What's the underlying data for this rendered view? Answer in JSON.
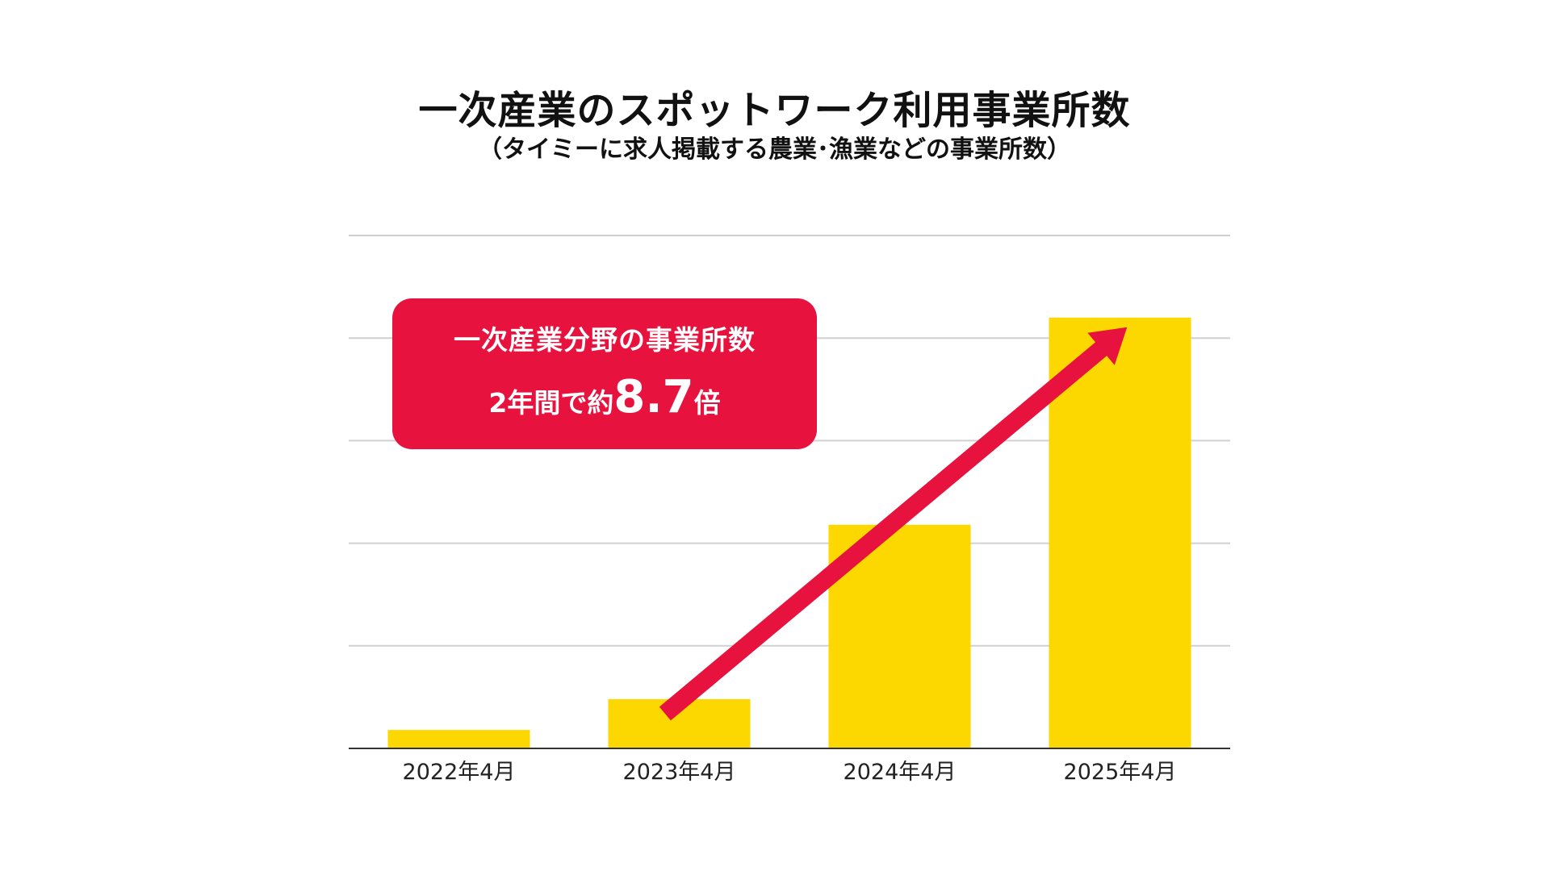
{
  "title": "一次産業のスポットワーク利用事業所数",
  "subtitle": "（タイミーに求人掲載する農業･漁業などの事業所数）",
  "callout": {
    "line1": "一次産業分野の事業所数",
    "line2_prefix": "2年間で",
    "line2_approx": "約",
    "line2_value": "8.7",
    "line2_suffix": "倍"
  },
  "colors": {
    "bar": "#FDD800",
    "arrow": "#E8123F",
    "callout_bg": "#E8123F",
    "grid": "#D0D0D0",
    "axis": "#333333"
  },
  "chart_data": {
    "type": "bar",
    "categories": [
      "2022年4月",
      "2023年4月",
      "2024年4月",
      "2025年4月"
    ],
    "values": [
      0.45,
      1.2,
      5.45,
      10.5
    ],
    "ylim": [
      0,
      12.5
    ],
    "grid": true,
    "y_tick_labels_shown": false,
    "annotation": {
      "type": "arrow",
      "from_category": "2023年4月",
      "to_category": "2025年4月"
    }
  }
}
